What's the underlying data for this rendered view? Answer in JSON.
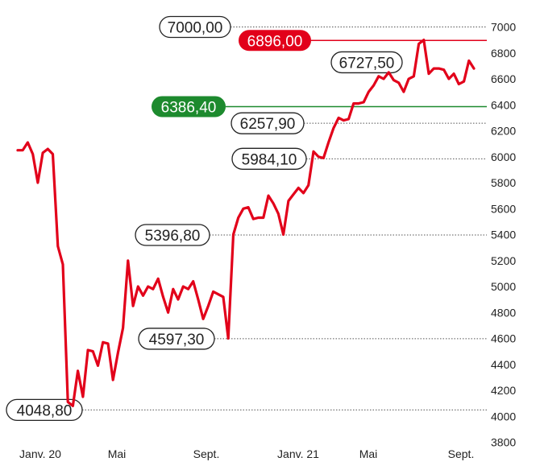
{
  "chart_data": {
    "type": "line",
    "title": "",
    "xlabel": "",
    "ylabel": "",
    "x_ticks": [
      "Janv. 20",
      "Mai",
      "Sept.",
      "Janv. 21",
      "Mai",
      "Sept."
    ],
    "y_ticks": [
      3800,
      4000,
      4200,
      4400,
      4600,
      4800,
      5000,
      5200,
      5400,
      5600,
      5800,
      6000,
      6200,
      6400,
      6600,
      6800,
      7000
    ],
    "ylim": [
      3800,
      7000
    ],
    "grid": false,
    "series": [
      {
        "color": "#e2001a",
        "values": [
          6050,
          6050,
          6110,
          6020,
          5800,
          6030,
          6060,
          6020,
          5310,
          5170,
          4110,
          4080,
          4350,
          4150,
          4510,
          4500,
          4390,
          4570,
          4560,
          4280,
          4490,
          4680,
          5200,
          4850,
          5000,
          4930,
          5000,
          4980,
          5060,
          4920,
          4800,
          4980,
          4900,
          5000,
          4980,
          5040,
          4900,
          4750,
          4850,
          4960,
          4940,
          4920,
          4600,
          5400,
          5530,
          5600,
          5610,
          5520,
          5530,
          5530,
          5700,
          5640,
          5560,
          5400,
          5660,
          5710,
          5760,
          5720,
          5780,
          6040,
          6000,
          5990,
          6110,
          6220,
          6300,
          6280,
          6290,
          6410,
          6410,
          6420,
          6500,
          6550,
          6620,
          6600,
          6650,
          6590,
          6570,
          6500,
          6600,
          6620,
          6870,
          6900,
          6640,
          6680,
          6680,
          6670,
          6600,
          6640,
          6560,
          6580,
          6740,
          6680
        ]
      }
    ],
    "annotations": [
      {
        "label": "7000,00",
        "value": 7000,
        "kind": "ref"
      },
      {
        "label": "6896,00",
        "value": 6896,
        "kind": "high"
      },
      {
        "label": "6727,50",
        "value": 6727.5,
        "kind": "point"
      },
      {
        "label": "6386,40",
        "value": 6386.4,
        "kind": "level"
      },
      {
        "label": "6257,90",
        "value": 6257.9,
        "kind": "ref"
      },
      {
        "label": "5984,10",
        "value": 5984.1,
        "kind": "ref"
      },
      {
        "label": "5396,80",
        "value": 5396.8,
        "kind": "ref"
      },
      {
        "label": "4597,30",
        "value": 4597.3,
        "kind": "ref"
      },
      {
        "label": "4048,80",
        "value": 4048.8,
        "kind": "ref"
      }
    ],
    "colors": {
      "line": "#e2001a",
      "high": "#e2001a",
      "level": "#1d8a2e",
      "text": "#222222"
    }
  }
}
